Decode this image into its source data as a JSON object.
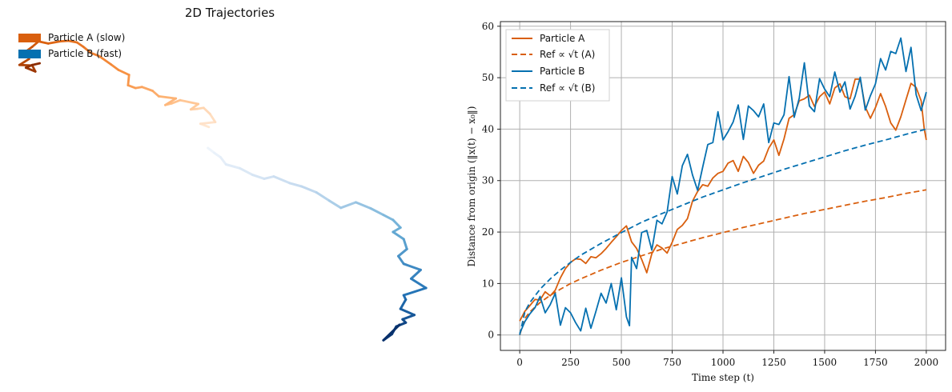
{
  "chart_data": [
    {
      "type": "line",
      "title": "2D Trajectories",
      "legend": [
        {
          "label": "Particle A (slow)",
          "color": "#d95f0e"
        },
        {
          "label": "Particle B (fast)",
          "color": "#0570b0"
        }
      ],
      "legend_placement": "top-left",
      "axes_visible": false,
      "series": [
        {
          "name": "Particle A (slow)",
          "color": "#d95f0e",
          "gradient": [
            "#ffe7d1",
            "#ffbf87",
            "#f78f3f",
            "#d95f0e",
            "#8b2d03"
          ],
          "x": [
            5.9,
            5.1,
            6.5,
            6.0,
            5.4,
            4.8,
            4.2,
            4.9,
            3.2,
            2.4,
            1.8,
            2.8,
            1.2,
            0.6,
            -0.4,
            -1.0,
            -1.7,
            -1.6,
            -2.6,
            -3.3,
            -4.4,
            -5.2,
            -5.9,
            -6.5,
            -7.3,
            -8.1,
            -9.2,
            -10.1,
            -10.7,
            -11.2,
            -11.0,
            -11.9,
            -10.7,
            -10.4,
            -11.3,
            -10.7,
            -10.0
          ],
          "y": [
            -12.6,
            -12.0,
            -11.7,
            -10.2,
            -9.1,
            -9.3,
            -9.4,
            -8.4,
            -7.7,
            -8.3,
            -8.6,
            -7.4,
            -7.0,
            -6.0,
            -5.3,
            -5.5,
            -5.0,
            -3.1,
            -2.2,
            -1.2,
            0.3,
            0.9,
            2.0,
            2.8,
            3.1,
            3.0,
            2.6,
            3.0,
            2.0,
            1.3,
            -0.2,
            -1.3,
            -1.4,
            -2.5,
            -1.8,
            -1.3,
            -1.0
          ]
        },
        {
          "name": "Particle B (fast)",
          "color": "#0570b0",
          "gradient": [
            "#eef4fb",
            "#c6dbef",
            "#6baed6",
            "#2171b5",
            "#08306b"
          ],
          "x": [
            5.8,
            6.4,
            7.0,
            7.5,
            8.8,
            10.0,
            11.1,
            12.0,
            13.5,
            14.6,
            16.0,
            17.2,
            18.3,
            19.7,
            21.1,
            22.3,
            23.2,
            23.9,
            23.2,
            24.2,
            24.5,
            23.7,
            24.2,
            25.8,
            24.9,
            26.3,
            24.2,
            24.4,
            23.9,
            25.2,
            24.1,
            24.4,
            23.5,
            23.1,
            22.3,
            23.8
          ],
          "y": [
            -16.4,
            -17.3,
            -18.1,
            -19.4,
            -20.1,
            -21.3,
            -22.0,
            -21.6,
            -22.8,
            -23.4,
            -24.5,
            -26.0,
            -27.3,
            -26.3,
            -27.4,
            -28.6,
            -29.5,
            -30.9,
            -31.7,
            -33.0,
            -34.8,
            -36.1,
            -37.5,
            -38.6,
            -40.2,
            -41.9,
            -43.2,
            -44.0,
            -45.7,
            -46.8,
            -47.6,
            -48.2,
            -48.9,
            -50.3,
            -51.4,
            -48.6
          ]
        }
      ]
    },
    {
      "type": "line",
      "title": "",
      "xlabel": "Time step (t)",
      "ylabel": "Distance from origin (‖x(t) − x₀‖)",
      "xlim": [
        -95,
        2095
      ],
      "ylim": [
        -3.0,
        60.9
      ],
      "xticks": [
        0,
        250,
        500,
        750,
        1000,
        1250,
        1500,
        1750,
        2000
      ],
      "yticks": [
        0,
        10,
        20,
        30,
        40,
        50,
        60
      ],
      "grid": true,
      "legend_placement": "top-left",
      "legend": [
        {
          "label": "Particle A",
          "color": "#d95f0e",
          "dash": "solid"
        },
        {
          "label": "Ref ∝ √t (A)",
          "color": "#d95f0e",
          "dash": "dashed"
        },
        {
          "label": "Particle B",
          "color": "#0570b0",
          "dash": "solid"
        },
        {
          "label": "Ref ∝ √t (B)",
          "color": "#0570b0",
          "dash": "dashed"
        }
      ],
      "series": [
        {
          "name": "Particle A",
          "color": "#d95f0e",
          "dash": "solid",
          "x": [
            0,
            25,
            50,
            75,
            100,
            125,
            150,
            175,
            200,
            225,
            250,
            275,
            300,
            325,
            350,
            375,
            400,
            425,
            450,
            475,
            500,
            525,
            550,
            575,
            600,
            625,
            650,
            675,
            700,
            725,
            750,
            775,
            800,
            825,
            850,
            875,
            900,
            925,
            950,
            975,
            1000,
            1025,
            1050,
            1075,
            1100,
            1125,
            1150,
            1175,
            1200,
            1225,
            1250,
            1275,
            1300,
            1325,
            1350,
            1375,
            1400,
            1425,
            1450,
            1475,
            1500,
            1525,
            1550,
            1575,
            1600,
            1625,
            1650,
            1675,
            1700,
            1725,
            1750,
            1775,
            1800,
            1825,
            1850,
            1875,
            1900,
            1925,
            1950,
            1975,
            1990,
            2000
          ],
          "y": [
            2.7,
            4.6,
            5.7,
            6.9,
            6.8,
            8.4,
            7.6,
            8.7,
            11.1,
            12.9,
            14.1,
            14.8,
            14.7,
            13.9,
            15.2,
            15.0,
            15.8,
            16.8,
            18.0,
            19.1,
            20.3,
            21.2,
            18.1,
            16.8,
            14.7,
            12.1,
            15.8,
            17.5,
            16.9,
            15.9,
            18.0,
            20.5,
            21.3,
            22.6,
            26.0,
            27.9,
            29.2,
            28.9,
            30.5,
            31.4,
            31.8,
            33.4,
            33.9,
            31.8,
            34.7,
            33.5,
            31.4,
            33.0,
            33.8,
            36.3,
            37.9,
            34.9,
            38.1,
            42.1,
            42.8,
            45.5,
            45.9,
            46.6,
            44.4,
            46.3,
            47.2,
            44.9,
            48.0,
            48.8,
            46.3,
            45.9,
            49.7,
            49.7,
            44.3,
            42.1,
            44.2,
            46.9,
            44.4,
            41.2,
            39.8,
            42.4,
            45.7,
            48.9,
            48.1,
            45.5,
            40.1,
            37.9
          ]
        },
        {
          "name": "Ref ∝ √t (A)",
          "color": "#d95f0e",
          "dash": "dashed",
          "x": [
            0,
            25,
            50,
            100,
            150,
            200,
            250,
            300,
            400,
            500,
            600,
            700,
            800,
            900,
            1000,
            1100,
            1200,
            1300,
            1400,
            1500,
            1600,
            1700,
            1800,
            1900,
            2000
          ],
          "y": [
            0.0,
            3.2,
            4.5,
            6.3,
            7.7,
            8.9,
            10.0,
            10.9,
            12.6,
            14.1,
            15.4,
            16.7,
            17.8,
            18.9,
            19.9,
            20.9,
            21.8,
            22.7,
            23.6,
            24.4,
            25.2,
            26.0,
            26.7,
            27.5,
            28.2
          ]
        },
        {
          "name": "Particle B",
          "color": "#0570b0",
          "dash": "solid",
          "x": [
            0,
            25,
            50,
            75,
            100,
            125,
            150,
            175,
            200,
            225,
            250,
            275,
            300,
            325,
            350,
            375,
            400,
            425,
            450,
            475,
            500,
            525,
            540,
            550,
            575,
            600,
            625,
            650,
            675,
            700,
            725,
            750,
            775,
            800,
            825,
            850,
            875,
            900,
            925,
            950,
            975,
            1000,
            1025,
            1050,
            1075,
            1100,
            1125,
            1150,
            1175,
            1200,
            1225,
            1250,
            1275,
            1300,
            1325,
            1350,
            1375,
            1400,
            1425,
            1450,
            1475,
            1500,
            1525,
            1550,
            1575,
            1600,
            1625,
            1650,
            1675,
            1700,
            1725,
            1750,
            1775,
            1800,
            1825,
            1850,
            1875,
            1900,
            1925,
            1950,
            1975,
            2000
          ],
          "y": [
            0.3,
            2.6,
            4.1,
            5.3,
            7.5,
            4.3,
            5.9,
            8.1,
            1.9,
            5.3,
            4.3,
            2.4,
            0.8,
            5.2,
            1.3,
            4.6,
            8.1,
            6.2,
            10.0,
            4.9,
            11.1,
            3.5,
            1.8,
            15.1,
            12.9,
            19.9,
            20.3,
            16.5,
            22.3,
            21.6,
            23.9,
            30.8,
            27.4,
            32.9,
            35.1,
            31.1,
            28.1,
            32.6,
            37.0,
            37.4,
            43.4,
            37.9,
            39.5,
            41.4,
            44.7,
            38.0,
            44.5,
            43.6,
            42.4,
            44.9,
            37.4,
            41.2,
            40.9,
            42.8,
            50.2,
            42.3,
            46.0,
            52.9,
            44.5,
            43.4,
            49.8,
            47.8,
            46.3,
            51.1,
            47.2,
            49.2,
            43.9,
            46.4,
            50.1,
            43.7,
            46.5,
            48.8,
            53.7,
            51.5,
            55.1,
            54.7,
            57.7,
            51.2,
            55.9,
            46.7,
            43.6,
            47.2
          ]
        },
        {
          "name": "Ref ∝ √t (B)",
          "color": "#0570b0",
          "dash": "dashed",
          "x": [
            0,
            25,
            50,
            100,
            150,
            200,
            250,
            300,
            400,
            500,
            600,
            700,
            800,
            900,
            1000,
            1100,
            1200,
            1300,
            1400,
            1500,
            1600,
            1700,
            1800,
            1900,
            2000
          ],
          "y": [
            0.0,
            4.5,
            6.3,
            8.9,
            10.9,
            12.6,
            14.1,
            15.5,
            17.8,
            19.9,
            21.9,
            23.6,
            25.2,
            26.8,
            28.2,
            29.6,
            30.9,
            32.2,
            33.4,
            34.6,
            35.8,
            36.9,
            37.9,
            39.0,
            40.0
          ]
        }
      ]
    }
  ]
}
